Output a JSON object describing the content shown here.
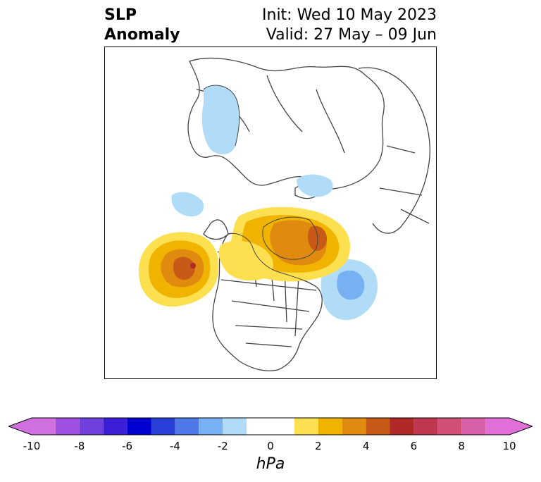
{
  "title": {
    "left_line1": "SLP",
    "left_line2": "Anomaly",
    "right_line1": "Init: Wed 10 May 2023",
    "right_line2": "Valid: 27 May – 09 Jun"
  },
  "colorbar": {
    "units": "hPa",
    "ticks": [
      "-10",
      "-8",
      "-6",
      "-4",
      "-2",
      "0",
      "2",
      "4",
      "6",
      "8",
      "10"
    ],
    "tick_values": [
      -10,
      -8,
      -6,
      -4,
      -2,
      0,
      2,
      4,
      6,
      8,
      10
    ],
    "bins": [
      {
        "from": -11,
        "to": -10,
        "color": "#d070e0"
      },
      {
        "from": -10,
        "to": -9,
        "color": "#d070e0"
      },
      {
        "from": -9,
        "to": -8,
        "color": "#a050e0"
      },
      {
        "from": -8,
        "to": -7,
        "color": "#7040dc"
      },
      {
        "from": -7,
        "to": -6,
        "color": "#3a1ed8"
      },
      {
        "from": -6,
        "to": -5,
        "color": "#0000d0"
      },
      {
        "from": -5,
        "to": -4,
        "color": "#2840d8"
      },
      {
        "from": -4,
        "to": -3,
        "color": "#4f78e8"
      },
      {
        "from": -3,
        "to": -2,
        "color": "#78b0f4"
      },
      {
        "from": -2,
        "to": -1,
        "color": "#b0dcf8"
      },
      {
        "from": -1,
        "to": 1,
        "color": "#ffffff"
      },
      {
        "from": 1,
        "to": 2,
        "color": "#fde050"
      },
      {
        "from": 2,
        "to": 3,
        "color": "#f0b400"
      },
      {
        "from": 3,
        "to": 4,
        "color": "#e08a10"
      },
      {
        "from": 4,
        "to": 5,
        "color": "#c85a18"
      },
      {
        "from": 5,
        "to": 6,
        "color": "#b02828"
      },
      {
        "from": 6,
        "to": 7,
        "color": "#c03850"
      },
      {
        "from": 7,
        "to": 8,
        "color": "#d05078"
      },
      {
        "from": 8,
        "to": 9,
        "color": "#d860a8"
      },
      {
        "from": 9,
        "to": 10,
        "color": "#e070d8"
      },
      {
        "from": 10,
        "to": 11,
        "color": "#e070d8"
      }
    ],
    "extend": "both"
  },
  "map": {
    "projection": "polar stereographic, North America / North Atlantic",
    "features": [
      {
        "name": "positive-anomaly-gulf-of-alaska",
        "sign": "positive",
        "peak_hpa": 6
      },
      {
        "name": "positive-anomaly-greenland",
        "sign": "positive",
        "peak_hpa": 5
      },
      {
        "name": "negative-anomaly-north-atlantic",
        "sign": "negative",
        "peak_hpa": -3
      },
      {
        "name": "negative-anomaly-siberia",
        "sign": "negative",
        "peak_hpa": -2
      },
      {
        "name": "negative-anomaly-scandinavia",
        "sign": "negative",
        "peak_hpa": -2
      },
      {
        "name": "negative-anomaly-bering",
        "sign": "negative",
        "peak_hpa": -2
      }
    ]
  }
}
